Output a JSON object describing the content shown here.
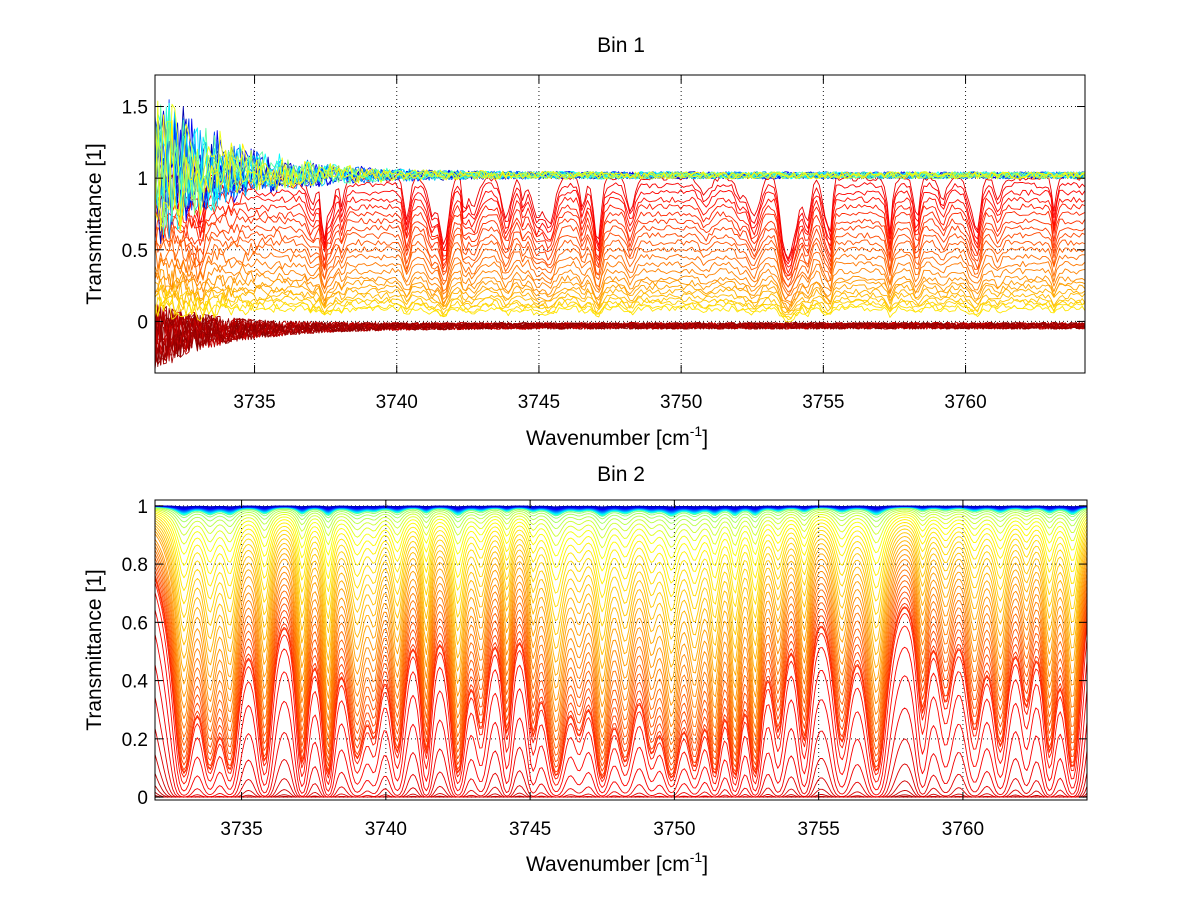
{
  "chart_data": [
    {
      "type": "line",
      "title": "Bin 1",
      "xlabel": "Wavenumber [cm",
      "xlabel_sup": "-1",
      "xlabel_end": "]",
      "ylabel": "Transmittance [1]",
      "xlim": [
        3731.5,
        3764.2
      ],
      "ylim": [
        -0.36,
        1.72
      ],
      "xticks": [
        3735,
        3740,
        3745,
        3750,
        3755,
        3760
      ],
      "xtick_labels": [
        "3735",
        "3740",
        "3745",
        "3750",
        "3755",
        "3760"
      ],
      "yticks": [
        0,
        0.5,
        1,
        1.5
      ],
      "ytick_labels": [
        "0",
        "0.5",
        "1",
        "1.5"
      ],
      "grid": true,
      "colormap": "jet",
      "colormap_stops": [
        "#00008f",
        "#0000ff",
        "#00ffff",
        "#ffff00",
        "#ff8000",
        "#ff0000",
        "#800000"
      ],
      "series_count": 60,
      "series_description_levels": {
        "noisy_near_one": 16,
        "absorbing_min_transmittance": [
          0.95,
          0.9,
          0.85,
          0.8,
          0.75,
          0.7,
          0.65,
          0.6,
          0.55,
          0.5,
          0.45,
          0.4,
          0.35,
          0.3,
          0.25,
          0.22,
          0.19,
          0.16,
          0.13,
          0.1,
          0.08,
          0.06,
          0.04
        ],
        "near_zero_noisy": 21
      }
    },
    {
      "type": "line",
      "title": "Bin 2",
      "xlabel": "Wavenumber [cm",
      "xlabel_sup": "-1",
      "xlabel_end": "]",
      "ylabel": "Transmittance [1]",
      "xlim": [
        3732.0,
        3764.3
      ],
      "ylim": [
        -0.01,
        1.02
      ],
      "xticks": [
        3735,
        3740,
        3745,
        3750,
        3755,
        3760
      ],
      "xtick_labels": [
        "3735",
        "3740",
        "3745",
        "3750",
        "3755",
        "3760"
      ],
      "yticks": [
        0,
        0.2,
        0.4,
        0.6,
        0.8,
        1
      ],
      "ytick_labels": [
        "0",
        "0.2",
        "0.4",
        "0.6",
        "0.8",
        "1"
      ],
      "grid": true,
      "colormap": "jet",
      "colormap_stops": [
        "#00008f",
        "#0000ff",
        "#00ffff",
        "#ffff00",
        "#ff8000",
        "#ff0000",
        "#800000"
      ],
      "series_count": 70,
      "absorption_line_centers": [
        3733.0,
        3733.9,
        3734.6,
        3735.8,
        3737.1,
        3738.0,
        3739.0,
        3739.6,
        3740.4,
        3741.4,
        3742.5,
        3743.3,
        3744.2,
        3745.1,
        3745.9,
        3746.7,
        3747.5,
        3748.3,
        3749.2,
        3749.9,
        3750.7,
        3751.4,
        3752.1,
        3752.8,
        3753.6,
        3754.5,
        3755.8,
        3757.0,
        3758.6,
        3759.4,
        3760.4,
        3761.3,
        3762.2,
        3763.0,
        3763.8
      ]
    }
  ]
}
